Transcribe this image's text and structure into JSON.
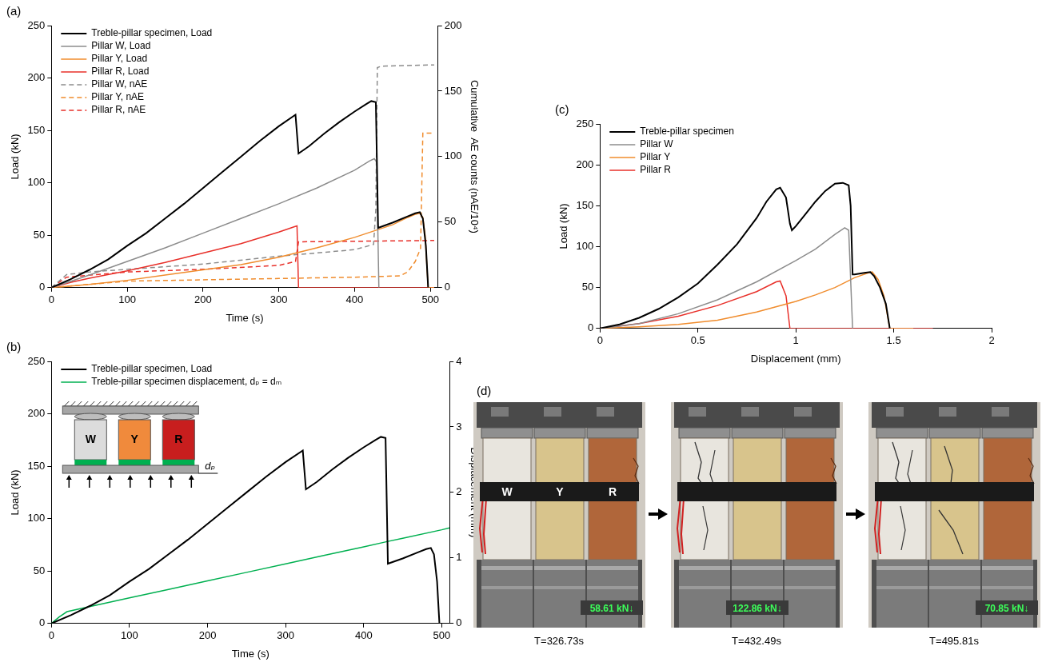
{
  "chart_data": [
    {
      "type": "line",
      "title": "(a)",
      "x_label": "Time (s)",
      "y_label": "Load (kN)",
      "y2_label": "Cumulative  AE counts (nAE/10⁴)",
      "xlim": [
        0,
        510
      ],
      "xticks": [
        0,
        100,
        200,
        300,
        400,
        500
      ],
      "ylim": [
        0,
        250
      ],
      "yticks": [
        0,
        50,
        100,
        150,
        200,
        250
      ],
      "y2lim": [
        0,
        200
      ],
      "y2ticks": [
        0,
        50,
        100,
        150,
        200
      ],
      "grid": false,
      "legend": "upper left",
      "series": [
        {
          "name": "Treble-pillar specimen, Load",
          "color": "#000000",
          "line_style": "solid",
          "marker": "none",
          "x": [
            0,
            25,
            50,
            75,
            100,
            125,
            150,
            175,
            200,
            225,
            250,
            275,
            300,
            322,
            326,
            340,
            360,
            380,
            400,
            415,
            422,
            428,
            431,
            450,
            470,
            480,
            486,
            490,
            494,
            497
          ],
          "values": [
            0,
            8,
            17,
            27,
            40,
            52,
            66,
            80,
            95,
            110,
            125,
            140,
            154,
            165,
            128,
            135,
            147,
            158,
            168,
            175,
            178,
            177,
            57,
            62,
            68,
            71,
            72,
            66,
            40,
            0
          ]
        },
        {
          "name": "Pillar W, Load",
          "color": "#8c8c8c",
          "line_style": "solid",
          "marker": "none",
          "x": [
            0,
            25,
            50,
            100,
            150,
            200,
            250,
            300,
            350,
            400,
            420,
            426,
            429,
            432
          ],
          "values": [
            0,
            6,
            12,
            25,
            38,
            52,
            66,
            80,
            95,
            112,
            121,
            123,
            120,
            0
          ]
        },
        {
          "name": "Pillar Y, Load",
          "color": "#f08c2d",
          "line_style": "solid",
          "marker": "none",
          "x": [
            0,
            50,
            100,
            150,
            200,
            250,
            300,
            350,
            400,
            450,
            470,
            480,
            486,
            490,
            493,
            497,
            505
          ],
          "values": [
            0,
            3,
            7,
            12,
            17,
            22,
            29,
            38,
            48,
            60,
            67,
            70,
            71,
            67,
            50,
            0,
            0
          ]
        },
        {
          "name": "Pillar R, Load",
          "color": "#e8302a",
          "line_style": "solid",
          "marker": "none",
          "x": [
            0,
            25,
            50,
            100,
            150,
            200,
            250,
            300,
            320,
            324,
            326,
            505
          ],
          "values": [
            0,
            5,
            9,
            16,
            24,
            33,
            42,
            53,
            58,
            59,
            0,
            0
          ]
        },
        {
          "name": "Pillar W, nAE",
          "color": "#8c8c8c",
          "line_style": "dashed",
          "marker": "none",
          "axis": "y2",
          "x": [
            0,
            20,
            50,
            100,
            200,
            300,
            400,
            425,
            428,
            430,
            435,
            505
          ],
          "values": [
            0,
            10,
            12,
            14,
            18,
            24,
            29,
            33,
            60,
            168,
            169,
            170
          ]
        },
        {
          "name": "Pillar Y, nAE",
          "color": "#f08c2d",
          "line_style": "dashed",
          "marker": "none",
          "axis": "y2",
          "x": [
            0,
            100,
            200,
            300,
            400,
            460,
            470,
            480,
            487,
            490,
            505
          ],
          "values": [
            0,
            5,
            6,
            7,
            8,
            9,
            12,
            20,
            30,
            118,
            118
          ]
        },
        {
          "name": "Pillar R, nAE",
          "color": "#e8302a",
          "line_style": "dashed",
          "marker": "none",
          "axis": "y2",
          "x": [
            0,
            20,
            100,
            200,
            300,
            322,
            326,
            505
          ],
          "values": [
            0,
            8,
            12,
            14,
            17,
            20,
            35,
            36
          ]
        }
      ]
    },
    {
      "type": "line",
      "title": "(b)",
      "x_label": "Time (s)",
      "y_label": "Load (kN)",
      "y2_label": "Displacement (mm)",
      "xlim": [
        0,
        510
      ],
      "xticks": [
        0,
        100,
        200,
        300,
        400,
        500
      ],
      "ylim": [
        0,
        250
      ],
      "yticks": [
        0,
        50,
        100,
        150,
        200,
        250
      ],
      "y2lim": [
        0,
        4
      ],
      "y2ticks": [
        0,
        1,
        2,
        3,
        4
      ],
      "grid": false,
      "legend": "upper left",
      "inset": {
        "pillars": [
          "W",
          "Y",
          "R"
        ],
        "label": "dₚ"
      },
      "series": [
        {
          "name": "Treble-pillar specimen, Load",
          "color": "#000000",
          "line_style": "solid",
          "marker": "none",
          "x": [
            0,
            25,
            50,
            75,
            100,
            125,
            150,
            175,
            200,
            225,
            250,
            275,
            300,
            322,
            326,
            340,
            360,
            380,
            400,
            415,
            422,
            428,
            431,
            450,
            470,
            480,
            486,
            490,
            494,
            497
          ],
          "values": [
            0,
            8,
            17,
            27,
            40,
            52,
            66,
            80,
            95,
            110,
            125,
            140,
            154,
            165,
            128,
            135,
            147,
            158,
            168,
            175,
            178,
            177,
            57,
            62,
            68,
            71,
            72,
            66,
            40,
            0
          ]
        },
        {
          "name": "Treble-pillar specimen displacement, dₚ = dₘ",
          "color": "#00b050",
          "line_style": "solid",
          "marker": "none",
          "axis": "y2",
          "x": [
            0,
            10,
            20,
            50,
            100,
            150,
            200,
            250,
            300,
            350,
            400,
            430,
            450,
            500,
            510
          ],
          "values": [
            0,
            0.1,
            0.18,
            0.26,
            0.39,
            0.52,
            0.65,
            0.78,
            0.91,
            1.04,
            1.17,
            1.25,
            1.3,
            1.43,
            1.46
          ]
        }
      ]
    },
    {
      "type": "line",
      "title": "(c)",
      "x_label": "Displacement (mm)",
      "y_label": "Load (kN)",
      "xlim": [
        0,
        2
      ],
      "xticks": [
        0,
        0.5,
        1,
        1.5,
        2
      ],
      "ylim": [
        0,
        250
      ],
      "yticks": [
        0,
        50,
        100,
        150,
        200,
        250
      ],
      "grid": false,
      "legend": "upper left",
      "series": [
        {
          "name": "Treble-pillar specimen",
          "color": "#000000",
          "line_style": "solid",
          "marker": "none",
          "x": [
            0,
            0.1,
            0.2,
            0.3,
            0.4,
            0.5,
            0.6,
            0.7,
            0.8,
            0.85,
            0.9,
            0.92,
            0.95,
            0.97,
            0.98,
            1.0,
            1.05,
            1.1,
            1.15,
            1.2,
            1.24,
            1.27,
            1.28,
            1.29,
            1.3,
            1.35,
            1.38,
            1.4,
            1.43,
            1.46,
            1.48
          ],
          "values": [
            0,
            5,
            13,
            24,
            38,
            55,
            78,
            103,
            135,
            155,
            170,
            172,
            160,
            128,
            120,
            125,
            140,
            155,
            168,
            177,
            178,
            175,
            150,
            66,
            66,
            68,
            69,
            64,
            50,
            30,
            0
          ]
        },
        {
          "name": "Pillar W",
          "color": "#8c8c8c",
          "line_style": "solid",
          "marker": "none",
          "x": [
            0,
            0.2,
            0.4,
            0.6,
            0.8,
            1.0,
            1.1,
            1.2,
            1.25,
            1.27,
            1.29
          ],
          "values": [
            0,
            6,
            18,
            35,
            57,
            83,
            97,
            115,
            123,
            120,
            0
          ]
        },
        {
          "name": "Pillar Y",
          "color": "#f08c2d",
          "line_style": "solid",
          "marker": "none",
          "x": [
            0,
            0.2,
            0.4,
            0.6,
            0.8,
            1.0,
            1.1,
            1.2,
            1.3,
            1.37,
            1.39,
            1.42,
            1.45,
            1.48,
            1.6
          ],
          "values": [
            0,
            2,
            5,
            10,
            20,
            33,
            41,
            50,
            62,
            68,
            69,
            60,
            40,
            0,
            0
          ]
        },
        {
          "name": "Pillar R",
          "color": "#e8302a",
          "line_style": "solid",
          "marker": "none",
          "x": [
            0,
            0.2,
            0.4,
            0.6,
            0.8,
            0.9,
            0.92,
            0.95,
            0.97,
            1.7
          ],
          "values": [
            0,
            6,
            15,
            28,
            45,
            57,
            58,
            40,
            0,
            0
          ]
        }
      ]
    }
  ],
  "photo_panel": {
    "title": "(d)",
    "pillar_labels": [
      "W",
      "Y",
      "R"
    ],
    "frames": [
      {
        "load": "58.61 kN↓",
        "time": "T=326.73s"
      },
      {
        "load": "122.86 kN↓",
        "time": "T=432.49s"
      },
      {
        "load": "70.85 kN↓",
        "time": "T=495.81s"
      }
    ]
  }
}
